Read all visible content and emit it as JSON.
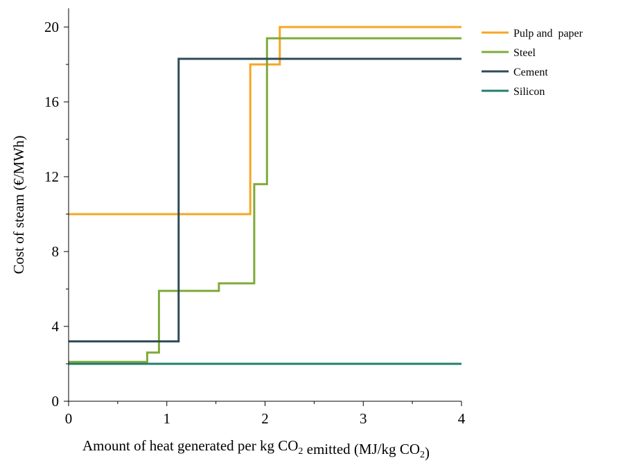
{
  "chart_data": {
    "type": "line",
    "step": true,
    "xlabel": "Amount of heat generated per kg CO2 emitted (MJ/kg CO2)",
    "ylabel": "Cost of steam (€/MWh)",
    "xlim": [
      0,
      4
    ],
    "ylim": [
      0,
      21
    ],
    "x_ticks": [
      0,
      1,
      2,
      3,
      4
    ],
    "x_tick_labels": [
      "0",
      "1",
      "2",
      "3",
      "4"
    ],
    "y_ticks": [
      0,
      4,
      8,
      12,
      16,
      20
    ],
    "y_tick_labels": [
      "0",
      "4",
      "8",
      "12",
      "16",
      "20"
    ],
    "grid": false,
    "legend_position": "right",
    "series": [
      {
        "name": "Pulp and  paper",
        "color": "#F5A623",
        "points": [
          [
            0,
            10
          ],
          [
            1.85,
            10
          ],
          [
            1.85,
            18
          ],
          [
            2.15,
            18
          ],
          [
            2.15,
            20
          ],
          [
            4,
            20
          ]
        ]
      },
      {
        "name": "Steel",
        "color": "#7FAA3A",
        "points": [
          [
            0,
            2.1
          ],
          [
            0.8,
            2.1
          ],
          [
            0.8,
            2.6
          ],
          [
            0.92,
            2.6
          ],
          [
            0.92,
            5.9
          ],
          [
            1.53,
            5.9
          ],
          [
            1.53,
            6.3
          ],
          [
            1.89,
            6.3
          ],
          [
            1.89,
            11.6
          ],
          [
            2.02,
            11.6
          ],
          [
            2.02,
            19.4
          ],
          [
            4,
            19.4
          ]
        ]
      },
      {
        "name": "Cement",
        "color": "#2E4A56",
        "points": [
          [
            0,
            3.2
          ],
          [
            1.12,
            3.2
          ],
          [
            1.12,
            18.3
          ],
          [
            4,
            18.3
          ]
        ]
      },
      {
        "name": "Silicon",
        "color": "#1F7F6E",
        "points": [
          [
            0,
            2
          ],
          [
            4,
            2
          ]
        ]
      }
    ]
  }
}
